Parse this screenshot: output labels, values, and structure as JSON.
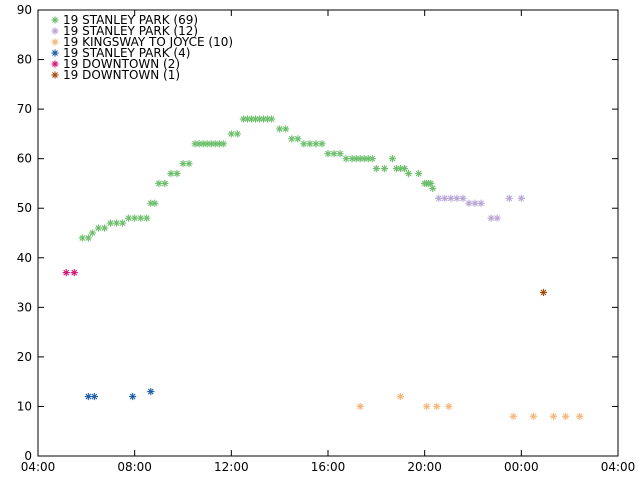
{
  "chart_data": {
    "type": "scatter",
    "title": "",
    "xlabel": "",
    "ylabel": "",
    "xlim": [
      "04:00",
      "28:00"
    ],
    "ylim": [
      0,
      90
    ],
    "grid": false,
    "legend_position": "top-left",
    "xticks": [
      "04:00",
      "08:00",
      "12:00",
      "16:00",
      "20:00",
      "00:00",
      "04:00"
    ],
    "yticks": [
      0,
      10,
      20,
      30,
      40,
      50,
      60,
      70,
      80,
      90
    ],
    "series": [
      {
        "name": "19 STANLEY PARK (69)",
        "color": "#6cbf6c",
        "x": [
          "05:50",
          "06:05",
          "06:15",
          "06:30",
          "06:45",
          "07:00",
          "07:15",
          "07:30",
          "07:45",
          "08:00",
          "08:15",
          "08:30",
          "08:40",
          "08:50",
          "09:00",
          "09:15",
          "09:30",
          "09:45",
          "10:00",
          "10:15",
          "10:30",
          "10:40",
          "10:50",
          "11:00",
          "11:10",
          "11:20",
          "11:30",
          "11:40",
          "12:00",
          "12:15",
          "12:30",
          "12:40",
          "12:50",
          "13:00",
          "13:10",
          "13:20",
          "13:30",
          "13:40",
          "14:00",
          "14:15",
          "14:30",
          "14:45",
          "15:00",
          "15:15",
          "15:30",
          "15:45",
          "16:00",
          "16:15",
          "16:30",
          "16:45",
          "17:00",
          "17:10",
          "17:20",
          "17:30",
          "17:40",
          "17:50",
          "18:00",
          "18:20",
          "18:40",
          "18:50",
          "19:00",
          "19:10",
          "19:20",
          "19:45",
          "20:00",
          "20:05",
          "20:10",
          "20:15",
          "20:20"
        ],
        "y": [
          44,
          44,
          45,
          46,
          46,
          47,
          47,
          47,
          48,
          48,
          48,
          48,
          51,
          51,
          55,
          55,
          57,
          57,
          59,
          59,
          63,
          63,
          63,
          63,
          63,
          63,
          63,
          63,
          65,
          65,
          68,
          68,
          68,
          68,
          68,
          68,
          68,
          68,
          66,
          66,
          64,
          64,
          63,
          63,
          63,
          63,
          61,
          61,
          61,
          60,
          60,
          60,
          60,
          60,
          60,
          60,
          58,
          58,
          60,
          58,
          58,
          58,
          57,
          57,
          55,
          55,
          55,
          55,
          54
        ]
      },
      {
        "name": "19 STANLEY PARK (12)",
        "color": "#b7a6d6",
        "x": [
          "20:35",
          "20:50",
          "21:05",
          "21:20",
          "21:35",
          "21:50",
          "22:05",
          "22:20",
          "22:45",
          "23:00",
          "23:30",
          "00:00"
        ],
        "y": [
          52,
          52,
          52,
          52,
          52,
          51,
          51,
          51,
          48,
          48,
          52,
          52
        ]
      },
      {
        "name": "19 KINGSWAY TO  JOYCE (10)",
        "color": "#f5b77a",
        "x": [
          "17:20",
          "19:00",
          "20:05",
          "20:30",
          "21:00",
          "23:40",
          "00:30",
          "01:20",
          "01:50",
          "02:25"
        ],
        "y": [
          10,
          12,
          10,
          10,
          10,
          8,
          8,
          8,
          8,
          8
        ]
      },
      {
        "name": "19 STANLEY PARK (4)",
        "color": "#1f5fa8",
        "x": [
          "06:05",
          "06:20",
          "07:55",
          "08:40"
        ],
        "y": [
          12,
          12,
          12,
          13
        ]
      },
      {
        "name": "19 DOWNTOWN (2)",
        "color": "#d4127a",
        "x": [
          "05:10",
          "05:30"
        ],
        "y": [
          37,
          37
        ]
      },
      {
        "name": "19 DOWNTOWN (1)",
        "color": "#a44d0c",
        "x": [
          "00:55"
        ],
        "y": [
          33
        ]
      }
    ]
  }
}
